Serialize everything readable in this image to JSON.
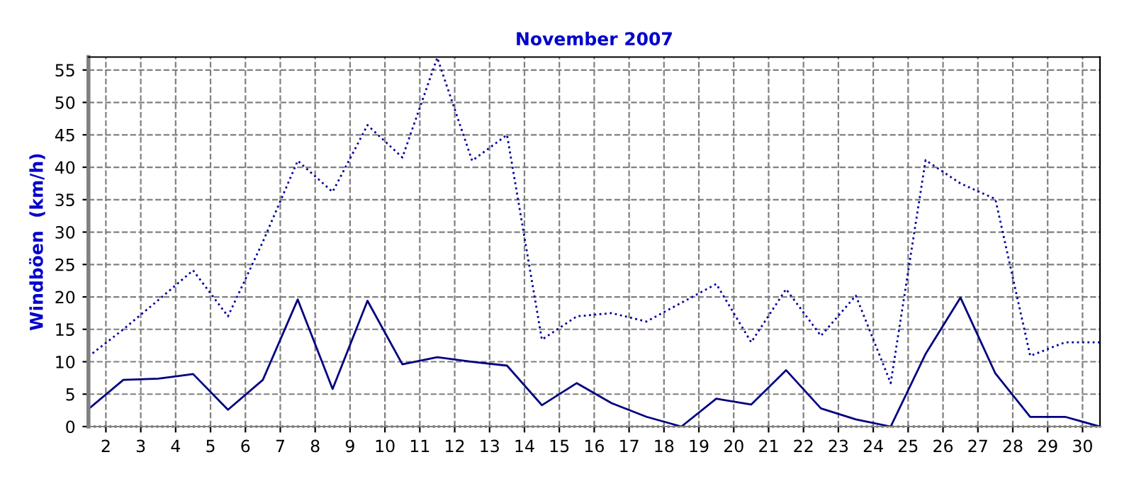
{
  "chart_data": {
    "type": "line",
    "title": "November 2007",
    "ylabel": "Windböen  (km/h)",
    "x": [
      1.5,
      2.5,
      3.5,
      4.5,
      5.5,
      6.5,
      7.5,
      8.5,
      9.5,
      10.5,
      11.5,
      12.5,
      13.5,
      14.5,
      15.5,
      16.5,
      17.5,
      18.5,
      19.5,
      20.5,
      21.5,
      22.5,
      23.5,
      24.5,
      25.5,
      26.5,
      27.5,
      28.5,
      29.5,
      30.5
    ],
    "series": [
      {
        "color": "#000080",
        "line_style": "solid",
        "values": [
          2.7,
          7.2,
          7.4,
          8.1,
          2.6,
          7.2,
          19.6,
          5.8,
          19.4,
          9.6,
          10.7,
          10.0,
          9.4,
          3.3,
          6.7,
          3.6,
          1.5,
          0,
          4.3,
          3.4,
          8.7,
          2.8,
          1.1,
          0,
          11.2,
          19.9,
          8.2,
          1.5,
          1.5,
          0
        ]
      },
      {
        "color": "#0000a0",
        "line_style": "dotted",
        "values": [
          10.8,
          15,
          19.5,
          24.1,
          17,
          28.5,
          41,
          36.2,
          46.5,
          41.5,
          56.9,
          41,
          45,
          13.4,
          17,
          17.5,
          16.2,
          19.1,
          22,
          13,
          21.2,
          14,
          20.2,
          6.7,
          41.1,
          37.5,
          35.1,
          10.9,
          13,
          13
        ]
      },
      {
        "color": "#0000ff",
        "line_style": "dotted",
        "values": [
          0,
          0,
          0,
          0,
          0,
          0,
          0,
          0,
          0,
          0,
          0,
          0,
          0,
          0,
          0,
          0,
          0,
          0,
          0,
          0,
          0,
          0,
          0,
          0,
          0,
          0,
          0,
          0,
          0,
          0
        ]
      }
    ],
    "xlim": [
      1.5,
      30.5
    ],
    "xticks": [
      2,
      3,
      4,
      5,
      6,
      7,
      8,
      9,
      10,
      11,
      12,
      13,
      14,
      15,
      16,
      17,
      18,
      19,
      20,
      21,
      22,
      23,
      24,
      25,
      26,
      27,
      28,
      29,
      30
    ],
    "ylim": [
      0,
      57
    ],
    "yticks": [
      0,
      5,
      10,
      15,
      20,
      25,
      30,
      35,
      40,
      45,
      50,
      55
    ],
    "grid": true,
    "marker": "none"
  }
}
